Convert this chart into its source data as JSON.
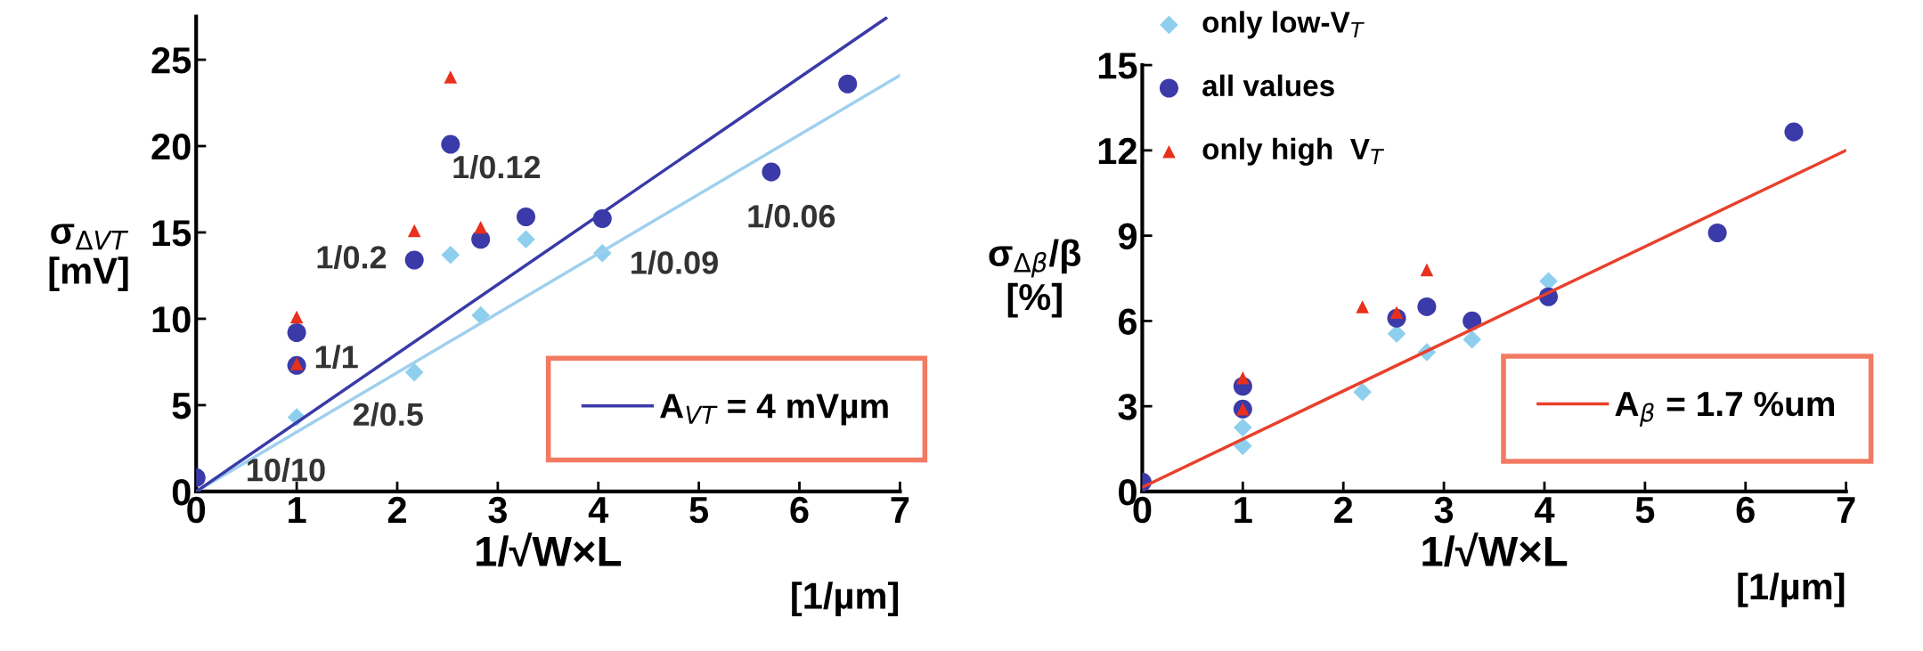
{
  "chart_data": [
    {
      "type": "scatter",
      "ylabel": "σ$_{ΔVT}$\n[mV]",
      "xlabel": "1/√W×L",
      "annotations": [
        {
          "text": "1/1",
          "x": 1,
          "y": 9.2
        },
        {
          "text": "2/0.5",
          "x": 1,
          "y": 4.3
        },
        {
          "text": "10/10",
          "x": 0,
          "y": 0.8
        },
        {
          "text": "1/0.2",
          "x": 2.17,
          "y": 13.4
        },
        {
          "text": "1/0.12",
          "x": 3.28,
          "y": 15.9
        },
        {
          "text": "1/0.09",
          "x": 4.04,
          "y": 13.8
        },
        {
          "text": "1/0.06",
          "x": 5.72,
          "y": 18.5
        },
        "[1/µm]"
      ],
      "xlim": [
        0,
        7
      ],
      "xticks": [
        0,
        1,
        2,
        3,
        4,
        5,
        6,
        7
      ],
      "ylim": [
        0,
        27.5
      ],
      "yticks": [
        0,
        5,
        10,
        15,
        20,
        25
      ],
      "grid": false,
      "legend": "bottom right",
      "series": [
        {
          "marker": "diamond",
          "color": "#8ecfee",
          "x": [
            1,
            2.17,
            2.53,
            2.83,
            3.28,
            4.04
          ],
          "values": [
            4.3,
            6.9,
            13.7,
            10.2,
            14.6,
            13.8
          ]
        },
        {
          "marker": "circle",
          "color": "#3a3aa8",
          "x": [
            0,
            1,
            1,
            2.17,
            2.53,
            2.83,
            3.28,
            4.04,
            5.72,
            6.48
          ],
          "values": [
            0.8,
            9.2,
            7.3,
            13.4,
            20.1,
            14.6,
            15.9,
            15.8,
            18.5,
            23.6
          ]
        },
        {
          "marker": "triangle",
          "color": "#e8301c",
          "x": [
            1,
            1,
            2.17,
            2.53,
            2.83
          ],
          "values": [
            10.1,
            7.4,
            15.1,
            24.0,
            15.3
          ]
        },
        {
          "type": "line",
          "color": "#9fd0ee",
          "x": [
            0,
            7
          ],
          "values": [
            0,
            24.1
          ]
        },
        {
          "type": "line",
          "name": "A$_{VT}$ = 4 mVµm",
          "color": "#3a3aa8",
          "x": [
            0,
            6.86
          ],
          "values": [
            0,
            27.4
          ]
        }
      ]
    },
    {
      "type": "scatter",
      "ylabel": "σ$_{Δβ}$/β\n[%]",
      "xlabel": "1/√W×L",
      "annotations": [
        "[1/µm]"
      ],
      "xlim": [
        0,
        7
      ],
      "xticks": [
        0,
        1,
        2,
        3,
        4,
        5,
        6,
        7
      ],
      "ylim": [
        0,
        15
      ],
      "yticks": [
        0,
        3,
        6,
        9,
        12,
        15
      ],
      "grid": false,
      "legend": "top left",
      "series": [
        {
          "name": "only low-V$_{T}$",
          "marker": "diamond",
          "color": "#8ecfee",
          "x": [
            1,
            1,
            2.19,
            2.53,
            2.83,
            3.28,
            4.04
          ],
          "values": [
            1.6,
            2.25,
            3.5,
            5.55,
            4.9,
            5.35,
            7.4
          ]
        },
        {
          "name": "all values",
          "marker": "circle",
          "color": "#3a3aa8",
          "x": [
            0,
            1,
            1,
            2.53,
            2.83,
            3.28,
            4.04,
            5.72,
            6.48
          ],
          "values": [
            0.33,
            3.7,
            2.9,
            6.1,
            6.5,
            6.0,
            6.85,
            9.1,
            12.65
          ]
        },
        {
          "name": "only high  V$_{T}$",
          "marker": "triangle",
          "color": "#e8301c",
          "x": [
            1,
            1,
            2.19,
            2.53,
            2.83
          ],
          "values": [
            4.0,
            2.9,
            6.5,
            6.3,
            7.8
          ]
        },
        {
          "type": "line",
          "name": "A$_{β}$ = 1.7 %um",
          "color": "#e8402c",
          "x": [
            0,
            7
          ],
          "values": [
            0.15,
            12.0
          ]
        }
      ]
    }
  ]
}
